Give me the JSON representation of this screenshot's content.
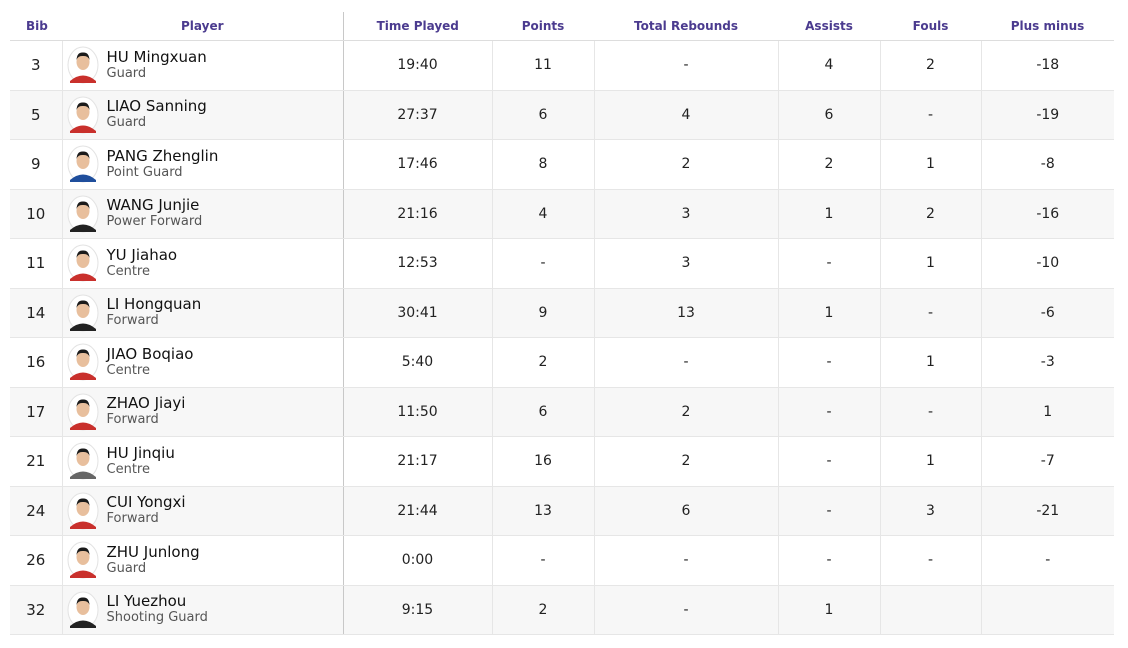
{
  "table": {
    "columns": [
      "Bib",
      "Player",
      "Time Played",
      "Points",
      "Total Rebounds",
      "Assists",
      "Fouls",
      "Plus minus"
    ],
    "rows": [
      {
        "bib": "3",
        "name": "HU Mingxuan",
        "position": "Guard",
        "time_played": "19:40",
        "points": "11",
        "total_rebounds": "-",
        "assists": "4",
        "fouls": "2",
        "plus_minus": "-18"
      },
      {
        "bib": "5",
        "name": "LIAO Sanning",
        "position": "Guard",
        "time_played": "27:37",
        "points": "6",
        "total_rebounds": "4",
        "assists": "6",
        "fouls": "-",
        "plus_minus": "-19"
      },
      {
        "bib": "9",
        "name": "PANG Zhenglin",
        "position": "Point Guard",
        "time_played": "17:46",
        "points": "8",
        "total_rebounds": "2",
        "assists": "2",
        "fouls": "1",
        "plus_minus": "-8"
      },
      {
        "bib": "10",
        "name": "WANG Junjie",
        "position": "Power Forward",
        "time_played": "21:16",
        "points": "4",
        "total_rebounds": "3",
        "assists": "1",
        "fouls": "2",
        "plus_minus": "-16"
      },
      {
        "bib": "11",
        "name": "YU Jiahao",
        "position": "Centre",
        "time_played": "12:53",
        "points": "-",
        "total_rebounds": "3",
        "assists": "-",
        "fouls": "1",
        "plus_minus": "-10"
      },
      {
        "bib": "14",
        "name": "LI Hongquan",
        "position": "Forward",
        "time_played": "30:41",
        "points": "9",
        "total_rebounds": "13",
        "assists": "1",
        "fouls": "-",
        "plus_minus": "-6"
      },
      {
        "bib": "16",
        "name": "JIAO Boqiao",
        "position": "Centre",
        "time_played": "5:40",
        "points": "2",
        "total_rebounds": "-",
        "assists": "-",
        "fouls": "1",
        "plus_minus": "-3"
      },
      {
        "bib": "17",
        "name": "ZHAO Jiayi",
        "position": "Forward",
        "time_played": "11:50",
        "points": "6",
        "total_rebounds": "2",
        "assists": "-",
        "fouls": "-",
        "plus_minus": "1"
      },
      {
        "bib": "21",
        "name": "HU Jinqiu",
        "position": "Centre",
        "time_played": "21:17",
        "points": "16",
        "total_rebounds": "2",
        "assists": "-",
        "fouls": "1",
        "plus_minus": "-7"
      },
      {
        "bib": "24",
        "name": "CUI Yongxi",
        "position": "Forward",
        "time_played": "21:44",
        "points": "13",
        "total_rebounds": "6",
        "assists": "-",
        "fouls": "3",
        "plus_minus": "-21"
      },
      {
        "bib": "26",
        "name": "ZHU Junlong",
        "position": "Guard",
        "time_played": "0:00",
        "points": "-",
        "total_rebounds": "-",
        "assists": "-",
        "fouls": "-",
        "plus_minus": "-"
      },
      {
        "bib": "32",
        "name": "LI Yuezhou",
        "position": "Shooting Guard",
        "time_played": "9:15",
        "points": "2",
        "total_rebounds": "-",
        "assists": "1",
        "fouls": "",
        "plus_minus": ""
      }
    ]
  }
}
